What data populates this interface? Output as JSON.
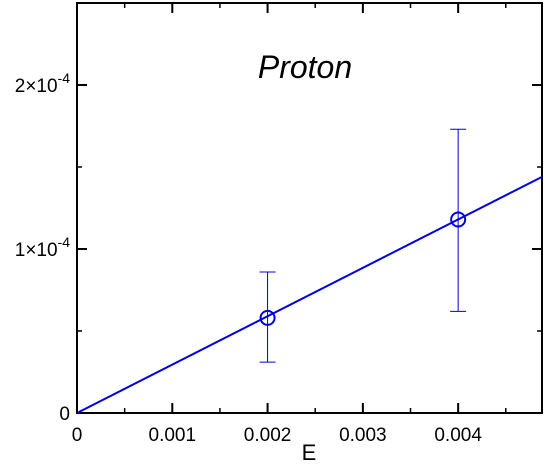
{
  "chart_data": {
    "type": "scatter",
    "title": "Proton",
    "xlabel": "E",
    "ylabel": "",
    "xlim": [
      0,
      0.00488
    ],
    "ylim": [
      0,
      0.00025
    ],
    "grid": false,
    "x_ticks": [
      {
        "value": 0,
        "label": "0"
      },
      {
        "value": 0.001,
        "label": "0.001"
      },
      {
        "value": 0.002,
        "label": "0.002"
      },
      {
        "value": 0.003,
        "label": "0.003"
      },
      {
        "value": 0.004,
        "label": "0.004"
      }
    ],
    "y_ticks": [
      {
        "value": 0,
        "mantissa": "0",
        "exponent": ""
      },
      {
        "value": 0.0001,
        "mantissa": "1×10",
        "exponent": "-4"
      },
      {
        "value": 0.0002,
        "mantissa": "2×10",
        "exponent": "-4"
      }
    ],
    "points": [
      {
        "x": 0.002,
        "y": 5.8e-05,
        "err_low": 3.1e-05,
        "err_high": 8.6e-05
      },
      {
        "x": 0.004,
        "y": 0.000118,
        "err_low": 6.2e-05,
        "err_high": 0.000173
      }
    ],
    "fit_line": {
      "x": [
        0,
        0.00488
      ],
      "y": [
        0,
        0.000144
      ]
    },
    "colors": {
      "series": "#0000dd",
      "axis": "#000000"
    }
  }
}
